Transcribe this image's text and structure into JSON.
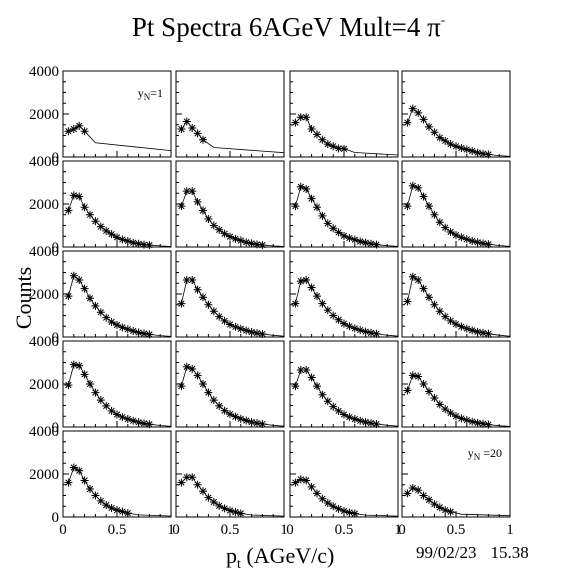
{
  "title": {
    "text": "Pt Spectra 6AGeV Mult=4 π",
    "superscript": "-"
  },
  "footer": {
    "date": "99/02/23",
    "time": "15.38"
  },
  "chart_data": {
    "type": "scatter",
    "layout": "5x4 panel grid",
    "xlabel": {
      "main": "p",
      "sub": "t",
      "rest": " (AGeV/c)"
    },
    "ylabel": "Counts",
    "xlim": [
      0,
      1
    ],
    "ylim": [
      0,
      4000
    ],
    "x_ticks": [
      "0",
      "0.5",
      "1"
    ],
    "y_ticks": [
      "0",
      "2000",
      "4000"
    ],
    "marker": "asterisk",
    "curve": "fitted line",
    "panels": [
      {
        "index": 1,
        "label": "y_N=1",
        "label_parts": [
          "y",
          "N",
          "=1"
        ],
        "x": [
          0.05,
          0.1,
          0.15,
          0.2
        ],
        "y": [
          1200,
          1300,
          1450,
          1200
        ]
      },
      {
        "index": 2,
        "label": "",
        "x": [
          0.05,
          0.1,
          0.15,
          0.2,
          0.25
        ],
        "y": [
          1300,
          1650,
          1350,
          1100,
          800
        ]
      },
      {
        "index": 3,
        "label": "",
        "x": [
          0.05,
          0.1,
          0.15,
          0.2,
          0.25,
          0.3,
          0.35,
          0.4,
          0.45,
          0.5
        ],
        "y": [
          1600,
          1850,
          1850,
          1300,
          1050,
          800,
          600,
          500,
          400,
          380
        ]
      },
      {
        "index": 4,
        "label": "",
        "x": [
          0.05,
          0.1,
          0.15,
          0.2,
          0.25,
          0.3,
          0.35,
          0.4,
          0.45,
          0.5,
          0.55,
          0.6,
          0.65,
          0.7,
          0.75,
          0.8
        ],
        "y": [
          1600,
          2250,
          2050,
          1750,
          1400,
          1150,
          900,
          750,
          600,
          500,
          420,
          350,
          280,
          200,
          150,
          120
        ]
      },
      {
        "index": 5,
        "label": "",
        "x": [
          0.05,
          0.1,
          0.15,
          0.2,
          0.25,
          0.3,
          0.35,
          0.4,
          0.45,
          0.5,
          0.55,
          0.6,
          0.65,
          0.7,
          0.75,
          0.8
        ],
        "y": [
          1700,
          2400,
          2350,
          1850,
          1500,
          1200,
          950,
          750,
          600,
          450,
          350,
          280,
          200,
          150,
          110,
          90
        ]
      },
      {
        "index": 6,
        "label": "",
        "x": [
          0.05,
          0.1,
          0.15,
          0.2,
          0.25,
          0.3,
          0.35,
          0.4,
          0.45,
          0.5,
          0.55,
          0.6,
          0.65,
          0.7,
          0.75,
          0.8
        ],
        "y": [
          1900,
          2600,
          2600,
          2100,
          1700,
          1300,
          1000,
          800,
          620,
          480,
          380,
          300,
          220,
          170,
          120,
          90
        ]
      },
      {
        "index": 7,
        "label": "",
        "x": [
          0.05,
          0.1,
          0.15,
          0.2,
          0.25,
          0.3,
          0.35,
          0.4,
          0.45,
          0.5,
          0.55,
          0.6,
          0.65,
          0.7,
          0.75,
          0.8
        ],
        "y": [
          1900,
          2800,
          2700,
          2250,
          1850,
          1450,
          1100,
          870,
          680,
          520,
          420,
          340,
          260,
          200,
          150,
          110
        ]
      },
      {
        "index": 8,
        "label": "",
        "x": [
          0.05,
          0.1,
          0.15,
          0.2,
          0.25,
          0.3,
          0.35,
          0.4,
          0.45,
          0.5,
          0.55,
          0.6,
          0.65,
          0.7,
          0.75,
          0.8
        ],
        "y": [
          1900,
          2850,
          2750,
          2350,
          1900,
          1500,
          1150,
          900,
          700,
          550,
          450,
          360,
          280,
          220,
          170,
          130
        ]
      },
      {
        "index": 9,
        "label": "",
        "x": [
          0.05,
          0.1,
          0.15,
          0.2,
          0.25,
          0.3,
          0.35,
          0.4,
          0.45,
          0.5,
          0.55,
          0.6,
          0.65,
          0.7,
          0.75,
          0.8
        ],
        "y": [
          1900,
          2850,
          2650,
          2250,
          1800,
          1450,
          1150,
          900,
          700,
          560,
          450,
          360,
          280,
          210,
          160,
          120
        ]
      },
      {
        "index": 10,
        "label": "",
        "x": [
          0.05,
          0.1,
          0.15,
          0.2,
          0.25,
          0.3,
          0.35,
          0.4,
          0.45,
          0.5,
          0.55,
          0.6,
          0.65,
          0.7,
          0.75,
          0.8
        ],
        "y": [
          1550,
          2650,
          2650,
          2200,
          1850,
          1500,
          1200,
          950,
          750,
          580,
          470,
          380,
          300,
          230,
          180,
          140
        ]
      },
      {
        "index": 11,
        "label": "",
        "x": [
          0.05,
          0.1,
          0.15,
          0.2,
          0.25,
          0.3,
          0.35,
          0.4,
          0.45,
          0.5,
          0.55,
          0.6,
          0.65,
          0.7,
          0.75,
          0.8
        ],
        "y": [
          1550,
          2600,
          2650,
          2300,
          1900,
          1550,
          1250,
          1000,
          800,
          620,
          500,
          400,
          320,
          250,
          190,
          150
        ]
      },
      {
        "index": 12,
        "label": "",
        "x": [
          0.05,
          0.1,
          0.15,
          0.2,
          0.25,
          0.3,
          0.35,
          0.4,
          0.45,
          0.5,
          0.55,
          0.6,
          0.65,
          0.7,
          0.75,
          0.8
        ],
        "y": [
          1650,
          2800,
          2650,
          2250,
          1850,
          1500,
          1200,
          950,
          750,
          600,
          480,
          390,
          310,
          240,
          190,
          150
        ]
      },
      {
        "index": 13,
        "label": "",
        "x": [
          0.05,
          0.1,
          0.15,
          0.2,
          0.25,
          0.3,
          0.35,
          0.4,
          0.45,
          0.5,
          0.55,
          0.6,
          0.65,
          0.7,
          0.75,
          0.8
        ],
        "y": [
          1950,
          2900,
          2850,
          2450,
          2000,
          1600,
          1250,
          980,
          750,
          580,
          460,
          370,
          290,
          220,
          170,
          130
        ]
      },
      {
        "index": 14,
        "label": "",
        "x": [
          0.05,
          0.1,
          0.15,
          0.2,
          0.25,
          0.3,
          0.35,
          0.4,
          0.45,
          0.5,
          0.55,
          0.6,
          0.65,
          0.7,
          0.75,
          0.8
        ],
        "y": [
          1900,
          2800,
          2700,
          2400,
          2000,
          1600,
          1250,
          980,
          760,
          600,
          480,
          380,
          300,
          230,
          180,
          140
        ]
      },
      {
        "index": 15,
        "label": "",
        "x": [
          0.05,
          0.1,
          0.15,
          0.2,
          0.25,
          0.3,
          0.35,
          0.4,
          0.45,
          0.5,
          0.55,
          0.6,
          0.65,
          0.7,
          0.75,
          0.8
        ],
        "y": [
          1900,
          2650,
          2650,
          2300,
          1900,
          1500,
          1200,
          950,
          750,
          580,
          460,
          370,
          290,
          230,
          180,
          140
        ]
      },
      {
        "index": 16,
        "label": "",
        "x": [
          0.05,
          0.1,
          0.15,
          0.2,
          0.25,
          0.3,
          0.35,
          0.4,
          0.45,
          0.5,
          0.55,
          0.6,
          0.65,
          0.7,
          0.75,
          0.8
        ],
        "y": [
          1700,
          2400,
          2350,
          2000,
          1650,
          1350,
          1050,
          830,
          650,
          500,
          400,
          320,
          250,
          190,
          150,
          110
        ]
      },
      {
        "index": 17,
        "label": "",
        "x": [
          0.05,
          0.1,
          0.15,
          0.2,
          0.25,
          0.3,
          0.35,
          0.4,
          0.45,
          0.5,
          0.55,
          0.6
        ],
        "y": [
          1600,
          2300,
          2150,
          1700,
          1300,
          1000,
          750,
          550,
          420,
          320,
          250,
          180
        ]
      },
      {
        "index": 18,
        "label": "",
        "x": [
          0.05,
          0.1,
          0.15,
          0.2,
          0.25,
          0.3,
          0.35,
          0.4,
          0.45,
          0.5,
          0.55,
          0.6
        ],
        "y": [
          1600,
          1850,
          1850,
          1500,
          1200,
          900,
          700,
          520,
          400,
          300,
          230,
          170
        ]
      },
      {
        "index": 19,
        "label": "",
        "x": [
          0.05,
          0.1,
          0.15,
          0.2,
          0.25,
          0.3,
          0.35,
          0.4,
          0.45,
          0.5,
          0.55,
          0.6
        ],
        "y": [
          1600,
          1750,
          1700,
          1400,
          1100,
          850,
          650,
          500,
          380,
          280,
          210,
          160
        ]
      },
      {
        "index": 20,
        "label": "y_N=20",
        "label_parts": [
          "y",
          "N",
          " =20"
        ],
        "x": [
          0.05,
          0.1,
          0.15,
          0.2,
          0.25,
          0.3,
          0.35,
          0.4,
          0.45
        ],
        "y": [
          1100,
          1350,
          1250,
          1000,
          800,
          600,
          450,
          320,
          240
        ]
      }
    ]
  }
}
